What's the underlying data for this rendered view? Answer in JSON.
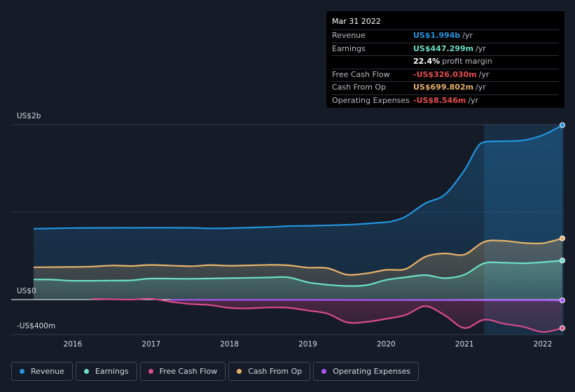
{
  "tooltip": {
    "date": "Mar 31 2022",
    "rows": [
      {
        "label": "Revenue",
        "value": "US$1.994b",
        "unit": "/yr",
        "color": "#2394df"
      },
      {
        "label": "Earnings",
        "value": "US$447.299m",
        "unit": "/yr",
        "color": "#6cdfc8"
      },
      {
        "label": "",
        "value": "22.4%",
        "unit": "profit margin",
        "color": "#ffffff"
      },
      {
        "label": "Free Cash Flow",
        "value": "-US$326.030m",
        "unit": "/yr",
        "color": "#e64d4d"
      },
      {
        "label": "Cash From Op",
        "value": "US$699.802m",
        "unit": "/yr",
        "color": "#e8b36c"
      },
      {
        "label": "Operating Expenses",
        "value": "-US$8.546m",
        "unit": "/yr",
        "color": "#e64d4d"
      }
    ]
  },
  "chart_data": {
    "type": "area",
    "title": "",
    "xlabel": "",
    "ylabel": "",
    "ylim": [
      -400,
      2000
    ],
    "y_tick_labels": [
      {
        "value": 2000,
        "label": "US$2b"
      },
      {
        "value": 0,
        "label": "US$0"
      },
      {
        "value": -400,
        "label": "-US$400m"
      }
    ],
    "x_ticks": [
      {
        "value": 2016,
        "label": "2016"
      },
      {
        "value": 2017,
        "label": "2017"
      },
      {
        "value": 2018,
        "label": "2018"
      },
      {
        "value": 2019,
        "label": "2019"
      },
      {
        "value": 2020,
        "label": "2020"
      },
      {
        "value": 2021,
        "label": "2021"
      },
      {
        "value": 2022,
        "label": "2022"
      }
    ],
    "xlim": [
      2015.5,
      2022.25
    ],
    "highlight_from": 2021.25,
    "series": [
      {
        "name": "Revenue",
        "color": "#2394df",
        "fill": true,
        "points": [
          [
            2015.5,
            810
          ],
          [
            2016,
            818
          ],
          [
            2016.5,
            820
          ],
          [
            2017,
            822
          ],
          [
            2017.5,
            820
          ],
          [
            2017.75,
            814
          ],
          [
            2018,
            816
          ],
          [
            2018.5,
            830
          ],
          [
            2018.75,
            840
          ],
          [
            2019,
            843
          ],
          [
            2019.5,
            855
          ],
          [
            2019.75,
            868
          ],
          [
            2020,
            885
          ],
          [
            2020.1,
            900
          ],
          [
            2020.25,
            950
          ],
          [
            2020.5,
            1100
          ],
          [
            2020.75,
            1200
          ],
          [
            2021,
            1480
          ],
          [
            2021.15,
            1720
          ],
          [
            2021.25,
            1800
          ],
          [
            2021.5,
            1810
          ],
          [
            2021.75,
            1820
          ],
          [
            2022,
            1880
          ],
          [
            2022.25,
            1994
          ]
        ]
      },
      {
        "name": "Cash From Op",
        "color": "#e8b36c",
        "fill": true,
        "points": [
          [
            2015.5,
            370
          ],
          [
            2016,
            373
          ],
          [
            2016.25,
            378
          ],
          [
            2016.5,
            390
          ],
          [
            2016.75,
            384
          ],
          [
            2017,
            396
          ],
          [
            2017.5,
            382
          ],
          [
            2017.75,
            395
          ],
          [
            2018,
            387
          ],
          [
            2018.5,
            397
          ],
          [
            2018.75,
            392
          ],
          [
            2019,
            366
          ],
          [
            2019.25,
            360
          ],
          [
            2019.5,
            285
          ],
          [
            2019.75,
            300
          ],
          [
            2020,
            340
          ],
          [
            2020.25,
            350
          ],
          [
            2020.5,
            490
          ],
          [
            2020.75,
            528
          ],
          [
            2021,
            515
          ],
          [
            2021.25,
            660
          ],
          [
            2021.5,
            672
          ],
          [
            2021.75,
            648
          ],
          [
            2022,
            645
          ],
          [
            2022.25,
            700
          ]
        ]
      },
      {
        "name": "Earnings",
        "color": "#6cdfc8",
        "fill": true,
        "points": [
          [
            2015.5,
            230
          ],
          [
            2015.75,
            228
          ],
          [
            2016,
            215
          ],
          [
            2016.5,
            218
          ],
          [
            2016.75,
            220
          ],
          [
            2017,
            240
          ],
          [
            2017.5,
            238
          ],
          [
            2018,
            245
          ],
          [
            2018.5,
            253
          ],
          [
            2018.75,
            255
          ],
          [
            2019,
            198
          ],
          [
            2019.25,
            170
          ],
          [
            2019.5,
            155
          ],
          [
            2019.75,
            165
          ],
          [
            2020,
            225
          ],
          [
            2020.25,
            255
          ],
          [
            2020.5,
            280
          ],
          [
            2020.75,
            245
          ],
          [
            2021,
            285
          ],
          [
            2021.25,
            415
          ],
          [
            2021.5,
            422
          ],
          [
            2021.75,
            415
          ],
          [
            2022,
            428
          ],
          [
            2022.25,
            447
          ]
        ]
      },
      {
        "name": "Free Cash Flow",
        "color": "#d94a8c",
        "fill": true,
        "points": [
          [
            2016.25,
            8
          ],
          [
            2016.5,
            4
          ],
          [
            2016.75,
            0
          ],
          [
            2017,
            10
          ],
          [
            2017.25,
            -25
          ],
          [
            2017.5,
            -50
          ],
          [
            2017.75,
            -62
          ],
          [
            2018,
            -95
          ],
          [
            2018.25,
            -100
          ],
          [
            2018.5,
            -90
          ],
          [
            2018.75,
            -93
          ],
          [
            2019,
            -125
          ],
          [
            2019.25,
            -160
          ],
          [
            2019.5,
            -260
          ],
          [
            2019.75,
            -255
          ],
          [
            2020,
            -220
          ],
          [
            2020.25,
            -175
          ],
          [
            2020.5,
            -75
          ],
          [
            2020.75,
            -180
          ],
          [
            2021,
            -325
          ],
          [
            2021.25,
            -230
          ],
          [
            2021.5,
            -275
          ],
          [
            2021.75,
            -310
          ],
          [
            2022,
            -370
          ],
          [
            2022.25,
            -326
          ]
        ]
      },
      {
        "name": "Operating Expenses",
        "color": "#a855f7",
        "fill": false,
        "points": [
          [
            2017.25,
            -2
          ],
          [
            2018,
            -3
          ],
          [
            2019,
            -3
          ],
          [
            2020,
            -5
          ],
          [
            2021,
            -6
          ],
          [
            2021.5,
            -8
          ],
          [
            2022,
            -8
          ],
          [
            2022.25,
            -8.5
          ]
        ]
      }
    ]
  },
  "legend": [
    {
      "label": "Revenue",
      "color": "#2394df"
    },
    {
      "label": "Earnings",
      "color": "#6cdfc8"
    },
    {
      "label": "Free Cash Flow",
      "color": "#d94a8c"
    },
    {
      "label": "Cash From Op",
      "color": "#e8b36c"
    },
    {
      "label": "Operating Expenses",
      "color": "#a855f7"
    }
  ]
}
